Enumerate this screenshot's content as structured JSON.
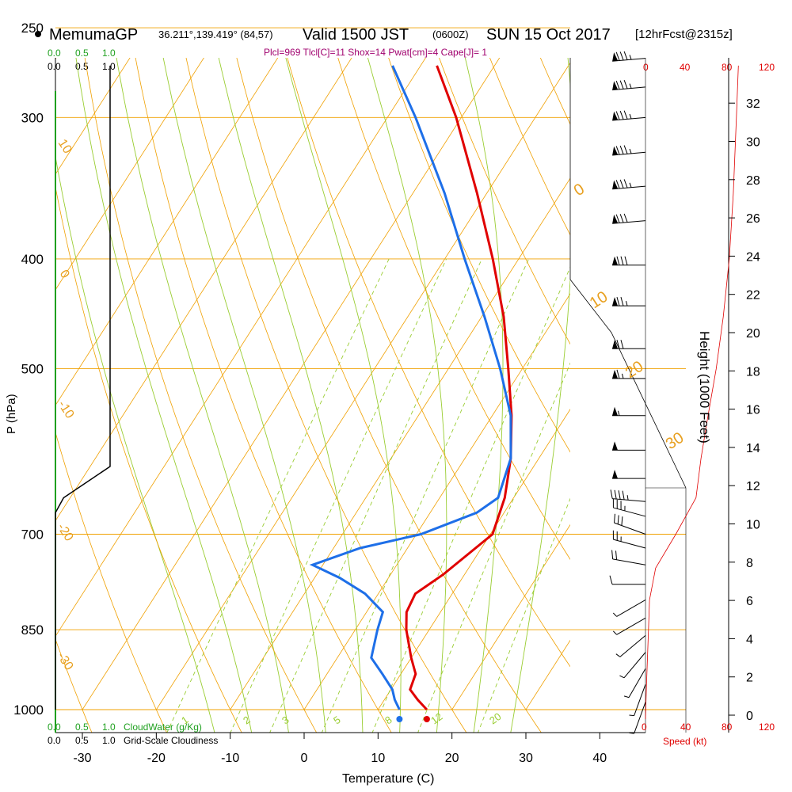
{
  "header": {
    "model": "MemumaGP",
    "location": "36.211°,139.419° (84,57)",
    "valid": "Valid 1500 JST",
    "zulu": "(0600Z)",
    "date": "SUN 15 Oct 2017",
    "forecast": "[12hrFcst@2315z]"
  },
  "params": "Plcl=969 Tlcl[C]=11 Shox=14 Pwat[cm]=4 Cape[J]= 1",
  "top_scales": {
    "cloudwater_ticks": [
      "0.0",
      "0.5",
      "1.0"
    ],
    "cloudiness_ticks": [
      "0.0",
      "0.5",
      "1.0"
    ],
    "speed_ticks": [
      "0",
      "40",
      "80",
      "120"
    ]
  },
  "bottom_scales": {
    "cloudwater_ticks": [
      "0.0",
      "0.5",
      "1.0"
    ],
    "cloudwater_label": "CloudWater (g/Kg)",
    "cloudiness_ticks": [
      "0.0",
      "0.5",
      "1.0"
    ],
    "cloudiness_label": "Grid-Scale Cloudiness",
    "speed_ticks": [
      "0",
      "40",
      "80",
      "120"
    ],
    "speed_label": "Speed (kt)"
  },
  "colors": {
    "isotherm": "#f0a000",
    "mixing_ratio": "#9acd32",
    "temperature": "#e00000",
    "dewpoint": "#1e6fe8",
    "cloudiness": "#000000",
    "cloudwater": "#1fa01f",
    "params": "#a0006e",
    "speed": "#e00000"
  },
  "chart_data": {
    "type": "line",
    "title": "Skew-T Sounding",
    "xlabel": "Temperature (C)",
    "ylabel": "P (hPa)",
    "y2label": "Height (1000 Feet)",
    "xlim": [
      -35,
      45
    ],
    "ylim": [
      1000,
      250
    ],
    "x_ticks": [
      -30,
      -20,
      -10,
      0,
      10,
      20,
      30,
      40
    ],
    "p_ticks": [
      1000,
      850,
      700,
      500,
      400,
      300,
      250
    ],
    "height_ticks": [
      0,
      2,
      4,
      6,
      8,
      10,
      12,
      14,
      16,
      18,
      20,
      22,
      24,
      26,
      28,
      30,
      32
    ],
    "isotherm_labels": [
      {
        "t": 10,
        "text": "10"
      },
      {
        "t": 0,
        "text": "0"
      },
      {
        "t": -10,
        "text": "-10"
      },
      {
        "t": -20,
        "text": "-20"
      },
      {
        "t": -30,
        "text": "-30"
      }
    ],
    "right_isotherm_labels": [
      {
        "t": 0,
        "text": "0"
      },
      {
        "t": 10,
        "text": "10"
      },
      {
        "t": 20,
        "text": "20"
      },
      {
        "t": 30,
        "text": "30"
      }
    ],
    "mixing_ratio_labels": [
      "1",
      "2",
      "3",
      "5",
      "8",
      "12",
      "20"
    ],
    "series": [
      {
        "name": "Temperature",
        "points": [
          {
            "p": 1000,
            "t": 16.6
          },
          {
            "p": 980,
            "t": 14.5
          },
          {
            "p": 960,
            "t": 12.6
          },
          {
            "p": 930,
            "t": 12.0
          },
          {
            "p": 900,
            "t": 10.0
          },
          {
            "p": 850,
            "t": 6.9
          },
          {
            "p": 820,
            "t": 5.4
          },
          {
            "p": 790,
            "t": 5.0
          },
          {
            "p": 760,
            "t": 7.1
          },
          {
            "p": 700,
            "t": 10.3
          },
          {
            "p": 650,
            "t": 8.8
          },
          {
            "p": 600,
            "t": 6.2
          },
          {
            "p": 550,
            "t": 2.6
          },
          {
            "p": 500,
            "t": -1.9
          },
          {
            "p": 450,
            "t": -7.0
          },
          {
            "p": 400,
            "t": -13.5
          },
          {
            "p": 350,
            "t": -21.3
          },
          {
            "p": 300,
            "t": -30.7
          },
          {
            "p": 270,
            "t": -37.8
          }
        ]
      },
      {
        "name": "Dewpoint",
        "points": [
          {
            "p": 1000,
            "t": 12.9
          },
          {
            "p": 980,
            "t": 11.4
          },
          {
            "p": 960,
            "t": 10.2
          },
          {
            "p": 930,
            "t": 7.5
          },
          {
            "p": 900,
            "t": 4.6
          },
          {
            "p": 850,
            "t": 3.0
          },
          {
            "p": 820,
            "t": 2.2
          },
          {
            "p": 790,
            "t": -1.8
          },
          {
            "p": 765,
            "t": -6.6
          },
          {
            "p": 745,
            "t": -11.4
          },
          {
            "p": 720,
            "t": -6.4
          },
          {
            "p": 700,
            "t": 0.6
          },
          {
            "p": 670,
            "t": 6.3
          },
          {
            "p": 650,
            "t": 7.9
          },
          {
            "p": 600,
            "t": 6.2
          },
          {
            "p": 550,
            "t": 2.5
          },
          {
            "p": 500,
            "t": -3.0
          },
          {
            "p": 450,
            "t": -9.6
          },
          {
            "p": 400,
            "t": -17.3
          },
          {
            "p": 350,
            "t": -25.7
          },
          {
            "p": 300,
            "t": -36.2
          },
          {
            "p": 270,
            "t": -43.8
          }
        ]
      }
    ],
    "cloudiness_profile": [
      {
        "p": 270,
        "frac": 1.0
      },
      {
        "p": 610,
        "frac": 1.0
      },
      {
        "p": 650,
        "frac": 0.15
      },
      {
        "p": 670,
        "frac": 0.0
      },
      {
        "p": 1000,
        "frac": 0.0
      }
    ],
    "speed_profile_kt": [
      {
        "p": 1000,
        "spd": 0
      },
      {
        "p": 950,
        "spd": 1
      },
      {
        "p": 900,
        "spd": 2
      },
      {
        "p": 850,
        "spd": 3
      },
      {
        "p": 800,
        "spd": 4
      },
      {
        "p": 750,
        "spd": 10
      },
      {
        "p": 700,
        "spd": 30
      },
      {
        "p": 650,
        "spd": 50
      },
      {
        "p": 600,
        "spd": 55
      },
      {
        "p": 550,
        "spd": 62
      },
      {
        "p": 500,
        "spd": 70
      },
      {
        "p": 450,
        "spd": 77
      },
      {
        "p": 400,
        "spd": 83
      },
      {
        "p": 350,
        "spd": 87
      },
      {
        "p": 300,
        "spd": 90
      },
      {
        "p": 270,
        "spd": 92
      }
    ],
    "wind_barbs": [
      {
        "p": 985,
        "spd": 5,
        "dir": 200
      },
      {
        "p": 950,
        "spd": 5,
        "dir": 200
      },
      {
        "p": 920,
        "spd": 5,
        "dir": 210
      },
      {
        "p": 890,
        "spd": 5,
        "dir": 220
      },
      {
        "p": 860,
        "spd": 5,
        "dir": 230
      },
      {
        "p": 830,
        "spd": 5,
        "dir": 240
      },
      {
        "p": 800,
        "spd": 5,
        "dir": 240
      },
      {
        "p": 775,
        "spd": 10,
        "dir": 270
      },
      {
        "p": 745,
        "spd": 20,
        "dir": 280
      },
      {
        "p": 720,
        "spd": 25,
        "dir": 285
      },
      {
        "p": 700,
        "spd": 30,
        "dir": 290
      },
      {
        "p": 675,
        "spd": 35,
        "dir": 285
      },
      {
        "p": 655,
        "spd": 45,
        "dir": 275
      },
      {
        "p": 625,
        "spd": 50,
        "dir": 270
      },
      {
        "p": 590,
        "spd": 50,
        "dir": 270
      },
      {
        "p": 550,
        "spd": 55,
        "dir": 270
      },
      {
        "p": 510,
        "spd": 65,
        "dir": 270
      },
      {
        "p": 480,
        "spd": 70,
        "dir": 270
      },
      {
        "p": 440,
        "spd": 75,
        "dir": 270
      },
      {
        "p": 405,
        "spd": 80,
        "dir": 270
      },
      {
        "p": 370,
        "spd": 80,
        "dir": 265
      },
      {
        "p": 345,
        "spd": 85,
        "dir": 265
      },
      {
        "p": 322,
        "spd": 85,
        "dir": 265
      },
      {
        "p": 300,
        "spd": 85,
        "dir": 265
      },
      {
        "p": 282,
        "spd": 85,
        "dir": 265
      },
      {
        "p": 266,
        "spd": 85,
        "dir": 265
      }
    ]
  }
}
